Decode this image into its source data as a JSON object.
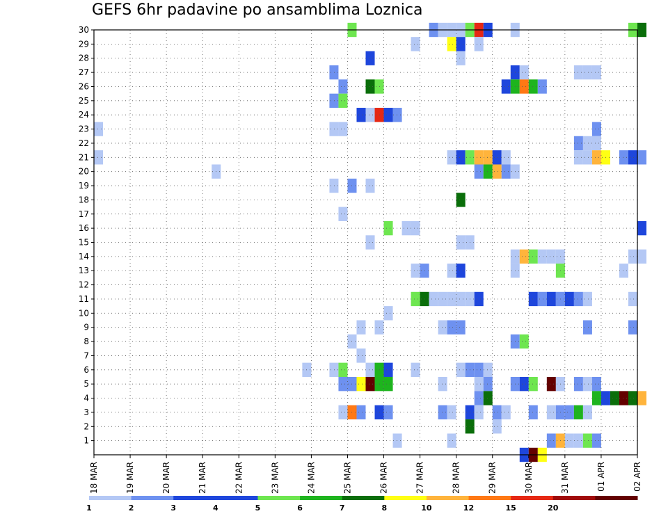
{
  "chart_data": {
    "type": "heatmap",
    "title": "GEFS 6hr padavine po ansamblima Loznica",
    "x_ticks": [
      "18 MAR",
      "19 MAR",
      "20 MAR",
      "21 MAR",
      "22 MAR",
      "23 MAR",
      "24 MAR",
      "25 MAR",
      "26 MAR",
      "27 MAR",
      "28 MAR",
      "29 MAR",
      "30 MAR",
      "31 MAR",
      "01 APR",
      "02 APR"
    ],
    "x_steps_per_day": 4,
    "y_ticks": [
      1,
      2,
      3,
      4,
      5,
      6,
      7,
      8,
      9,
      10,
      11,
      12,
      13,
      14,
      15,
      16,
      17,
      18,
      19,
      20,
      21,
      22,
      23,
      24,
      25,
      26,
      27,
      28,
      29,
      30
    ],
    "grid": true,
    "colorbar": {
      "labels": [
        "1",
        "2",
        "3",
        "4",
        "5",
        "6",
        "7",
        "8",
        "10",
        "12",
        "15",
        "20"
      ],
      "colors": [
        "#b4c8f5",
        "#6e91f0",
        "#1e46dc",
        "#1e46dc",
        "#6ee650",
        "#1eb41e",
        "#0a6e0a",
        "#ffff14",
        "#ffb43c",
        "#ff7814",
        "#e62814",
        "#a00a0a",
        "#640000"
      ]
    },
    "cells": [
      {
        "member": 30,
        "step": 28,
        "value": 5
      },
      {
        "member": 30,
        "step": 37,
        "value": 2
      },
      {
        "member": 30,
        "step": 38,
        "value": 1
      },
      {
        "member": 30,
        "step": 39,
        "value": 1
      },
      {
        "member": 30,
        "step": 40,
        "value": 1
      },
      {
        "member": 30,
        "step": 41,
        "value": 5
      },
      {
        "member": 30,
        "step": 42,
        "value": 15
      },
      {
        "member": 30,
        "step": 43,
        "value": 3
      },
      {
        "member": 30,
        "step": 46,
        "value": 1
      },
      {
        "member": 30,
        "step": 59,
        "value": 5
      },
      {
        "member": 30,
        "step": 60,
        "value": 7
      },
      {
        "member": 29,
        "step": 35,
        "value": 1
      },
      {
        "member": 29,
        "step": 39,
        "value": 8
      },
      {
        "member": 29,
        "step": 40,
        "value": 3
      },
      {
        "member": 29,
        "step": 42,
        "value": 1
      },
      {
        "member": 28,
        "step": 30,
        "value": 3
      },
      {
        "member": 28,
        "step": 40,
        "value": 1
      },
      {
        "member": 27,
        "step": 26,
        "value": 2
      },
      {
        "member": 27,
        "step": 46,
        "value": 3
      },
      {
        "member": 27,
        "step": 47,
        "value": 1
      },
      {
        "member": 27,
        "step": 53,
        "value": 1
      },
      {
        "member": 27,
        "step": 54,
        "value": 1
      },
      {
        "member": 27,
        "step": 55,
        "value": 1
      },
      {
        "member": 26,
        "step": 27,
        "value": 2
      },
      {
        "member": 26,
        "step": 30,
        "value": 7
      },
      {
        "member": 26,
        "step": 31,
        "value": 5
      },
      {
        "member": 26,
        "step": 45,
        "value": 3
      },
      {
        "member": 26,
        "step": 46,
        "value": 6
      },
      {
        "member": 26,
        "step": 47,
        "value": 12
      },
      {
        "member": 26,
        "step": 48,
        "value": 6
      },
      {
        "member": 26,
        "step": 49,
        "value": 2
      },
      {
        "member": 25,
        "step": 26,
        "value": 2
      },
      {
        "member": 25,
        "step": 27,
        "value": 5
      },
      {
        "member": 24,
        "step": 29,
        "value": 3
      },
      {
        "member": 24,
        "step": 30,
        "value": 1
      },
      {
        "member": 24,
        "step": 31,
        "value": 15
      },
      {
        "member": 24,
        "step": 32,
        "value": 3
      },
      {
        "member": 24,
        "step": 33,
        "value": 2
      },
      {
        "member": 23,
        "step": 0,
        "value": 1
      },
      {
        "member": 23,
        "step": 26,
        "value": 1
      },
      {
        "member": 23,
        "step": 27,
        "value": 1
      },
      {
        "member": 23,
        "step": 55,
        "value": 2
      },
      {
        "member": 22,
        "step": 53,
        "value": 2
      },
      {
        "member": 22,
        "step": 54,
        "value": 1
      },
      {
        "member": 22,
        "step": 55,
        "value": 1
      },
      {
        "member": 21,
        "step": 0,
        "value": 1
      },
      {
        "member": 21,
        "step": 39,
        "value": 1
      },
      {
        "member": 21,
        "step": 40,
        "value": 3
      },
      {
        "member": 21,
        "step": 41,
        "value": 5
      },
      {
        "member": 21,
        "step": 42,
        "value": 10
      },
      {
        "member": 21,
        "step": 43,
        "value": 10
      },
      {
        "member": 21,
        "step": 44,
        "value": 3
      },
      {
        "member": 21,
        "step": 45,
        "value": 1
      },
      {
        "member": 21,
        "step": 53,
        "value": 1
      },
      {
        "member": 21,
        "step": 54,
        "value": 1
      },
      {
        "member": 21,
        "step": 55,
        "value": 10
      },
      {
        "member": 21,
        "step": 56,
        "value": 8
      },
      {
        "member": 21,
        "step": 58,
        "value": 2
      },
      {
        "member": 21,
        "step": 59,
        "value": 3
      },
      {
        "member": 21,
        "step": 60,
        "value": 2
      },
      {
        "member": 20,
        "step": 13,
        "value": 1
      },
      {
        "member": 20,
        "step": 42,
        "value": 2
      },
      {
        "member": 20,
        "step": 43,
        "value": 6
      },
      {
        "member": 20,
        "step": 44,
        "value": 10
      },
      {
        "member": 20,
        "step": 45,
        "value": 2
      },
      {
        "member": 20,
        "step": 46,
        "value": 1
      },
      {
        "member": 19,
        "step": 26,
        "value": 1
      },
      {
        "member": 19,
        "step": 28,
        "value": 2
      },
      {
        "member": 19,
        "step": 30,
        "value": 1
      },
      {
        "member": 18,
        "step": 40,
        "value": 7
      },
      {
        "member": 17,
        "step": 27,
        "value": 1
      },
      {
        "member": 16,
        "step": 32,
        "value": 5
      },
      {
        "member": 16,
        "step": 34,
        "value": 1
      },
      {
        "member": 16,
        "step": 35,
        "value": 1
      },
      {
        "member": 16,
        "step": 60,
        "value": 3
      },
      {
        "member": 15,
        "step": 30,
        "value": 1
      },
      {
        "member": 15,
        "step": 40,
        "value": 1
      },
      {
        "member": 15,
        "step": 41,
        "value": 1
      },
      {
        "member": 14,
        "step": 46,
        "value": 1
      },
      {
        "member": 14,
        "step": 47,
        "value": 10
      },
      {
        "member": 14,
        "step": 48,
        "value": 5
      },
      {
        "member": 14,
        "step": 49,
        "value": 1
      },
      {
        "member": 14,
        "step": 50,
        "value": 1
      },
      {
        "member": 14,
        "step": 51,
        "value": 1
      },
      {
        "member": 14,
        "step": 59,
        "value": 1
      },
      {
        "member": 14,
        "step": 60,
        "value": 1
      },
      {
        "member": 13,
        "step": 35,
        "value": 1
      },
      {
        "member": 13,
        "step": 36,
        "value": 2
      },
      {
        "member": 13,
        "step": 39,
        "value": 1
      },
      {
        "member": 13,
        "step": 40,
        "value": 3
      },
      {
        "member": 13,
        "step": 46,
        "value": 1
      },
      {
        "member": 13,
        "step": 51,
        "value": 5
      },
      {
        "member": 13,
        "step": 58,
        "value": 1
      },
      {
        "member": 11,
        "step": 35,
        "value": 5
      },
      {
        "member": 11,
        "step": 36,
        "value": 7
      },
      {
        "member": 11,
        "step": 37,
        "value": 1
      },
      {
        "member": 11,
        "step": 38,
        "value": 1
      },
      {
        "member": 11,
        "step": 39,
        "value": 1
      },
      {
        "member": 11,
        "step": 40,
        "value": 1
      },
      {
        "member": 11,
        "step": 41,
        "value": 1
      },
      {
        "member": 11,
        "step": 42,
        "value": 3
      },
      {
        "member": 11,
        "step": 48,
        "value": 3
      },
      {
        "member": 11,
        "step": 49,
        "value": 2
      },
      {
        "member": 11,
        "step": 50,
        "value": 3
      },
      {
        "member": 11,
        "step": 51,
        "value": 2
      },
      {
        "member": 11,
        "step": 52,
        "value": 3
      },
      {
        "member": 11,
        "step": 53,
        "value": 2
      },
      {
        "member": 11,
        "step": 54,
        "value": 1
      },
      {
        "member": 11,
        "step": 59,
        "value": 1
      },
      {
        "member": 10,
        "step": 32,
        "value": 1
      },
      {
        "member": 9,
        "step": 29,
        "value": 1
      },
      {
        "member": 9,
        "step": 31,
        "value": 1
      },
      {
        "member": 9,
        "step": 38,
        "value": 1
      },
      {
        "member": 9,
        "step": 39,
        "value": 2
      },
      {
        "member": 9,
        "step": 40,
        "value": 2
      },
      {
        "member": 9,
        "step": 54,
        "value": 2
      },
      {
        "member": 9,
        "step": 59,
        "value": 2
      },
      {
        "member": 8,
        "step": 28,
        "value": 1
      },
      {
        "member": 8,
        "step": 46,
        "value": 2
      },
      {
        "member": 8,
        "step": 47,
        "value": 5
      },
      {
        "member": 7,
        "step": 29,
        "value": 1
      },
      {
        "member": 6,
        "step": 23,
        "value": 1
      },
      {
        "member": 6,
        "step": 26,
        "value": 1
      },
      {
        "member": 6,
        "step": 27,
        "value": 5
      },
      {
        "member": 6,
        "step": 30,
        "value": 1
      },
      {
        "member": 6,
        "step": 31,
        "value": 6
      },
      {
        "member": 6,
        "step": 32,
        "value": 3
      },
      {
        "member": 6,
        "step": 35,
        "value": 1
      },
      {
        "member": 6,
        "step": 40,
        "value": 1
      },
      {
        "member": 6,
        "step": 41,
        "value": 2
      },
      {
        "member": 6,
        "step": 42,
        "value": 2
      },
      {
        "member": 6,
        "step": 43,
        "value": 1
      },
      {
        "member": 5,
        "step": 27,
        "value": 2
      },
      {
        "member": 5,
        "step": 28,
        "value": 2
      },
      {
        "member": 5,
        "step": 29,
        "value": 8
      },
      {
        "member": 5,
        "step": 30,
        "value": 20
      },
      {
        "member": 5,
        "step": 31,
        "value": 6
      },
      {
        "member": 5,
        "step": 32,
        "value": 6
      },
      {
        "member": 5,
        "step": 38,
        "value": 1
      },
      {
        "member": 5,
        "step": 42,
        "value": 1
      },
      {
        "member": 5,
        "step": 43,
        "value": 2
      },
      {
        "member": 5,
        "step": 46,
        "value": 2
      },
      {
        "member": 5,
        "step": 47,
        "value": 3
      },
      {
        "member": 5,
        "step": 48,
        "value": 5
      },
      {
        "member": 5,
        "step": 50,
        "value": 20
      },
      {
        "member": 5,
        "step": 51,
        "value": 1
      },
      {
        "member": 5,
        "step": 53,
        "value": 2
      },
      {
        "member": 5,
        "step": 54,
        "value": 1
      },
      {
        "member": 5,
        "step": 55,
        "value": 2
      },
      {
        "member": 4,
        "step": 42,
        "value": 2
      },
      {
        "member": 4,
        "step": 43,
        "value": 7
      },
      {
        "member": 4,
        "step": 55,
        "value": 6
      },
      {
        "member": 4,
        "step": 56,
        "value": 3
      },
      {
        "member": 4,
        "step": 57,
        "value": 7
      },
      {
        "member": 4,
        "step": 58,
        "value": 20
      },
      {
        "member": 4,
        "step": 59,
        "value": 7
      },
      {
        "member": 4,
        "step": 60,
        "value": 10
      },
      {
        "member": 3,
        "step": 27,
        "value": 1
      },
      {
        "member": 3,
        "step": 28,
        "value": 12
      },
      {
        "member": 3,
        "step": 29,
        "value": 2
      },
      {
        "member": 3,
        "step": 31,
        "value": 3
      },
      {
        "member": 3,
        "step": 32,
        "value": 2
      },
      {
        "member": 3,
        "step": 38,
        "value": 2
      },
      {
        "member": 3,
        "step": 39,
        "value": 1
      },
      {
        "member": 3,
        "step": 41,
        "value": 3
      },
      {
        "member": 3,
        "step": 42,
        "value": 1
      },
      {
        "member": 3,
        "step": 44,
        "value": 2
      },
      {
        "member": 3,
        "step": 45,
        "value": 1
      },
      {
        "member": 3,
        "step": 48,
        "value": 2
      },
      {
        "member": 3,
        "step": 50,
        "value": 1
      },
      {
        "member": 3,
        "step": 51,
        "value": 2
      },
      {
        "member": 3,
        "step": 52,
        "value": 2
      },
      {
        "member": 3,
        "step": 53,
        "value": 6
      },
      {
        "member": 3,
        "step": 54,
        "value": 1
      },
      {
        "member": 2,
        "step": 41,
        "value": 7
      },
      {
        "member": 2,
        "step": 44,
        "value": 1
      },
      {
        "member": 1,
        "step": 33,
        "value": 1
      },
      {
        "member": 1,
        "step": 39,
        "value": 1
      },
      {
        "member": 1,
        "step": 50,
        "value": 2
      },
      {
        "member": 1,
        "step": 51,
        "value": 10
      },
      {
        "member": 1,
        "step": 52,
        "value": 1
      },
      {
        "member": 1,
        "step": 53,
        "value": 1
      },
      {
        "member": 1,
        "step": 54,
        "value": 5
      },
      {
        "member": 1,
        "step": 55,
        "value": 2
      },
      {
        "member": 0,
        "step": 47,
        "value": 3
      },
      {
        "member": 0,
        "step": 48,
        "value": 20
      },
      {
        "member": 0,
        "step": 49,
        "value": 8
      }
    ]
  }
}
